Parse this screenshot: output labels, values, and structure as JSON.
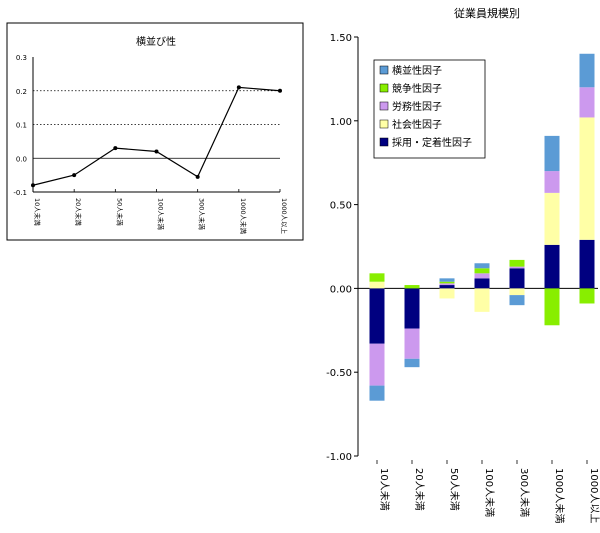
{
  "chart_data": [
    {
      "type": "line",
      "title": "横並び性",
      "categories": [
        "10人未満",
        "20人未満",
        "50人未満",
        "100人未満",
        "300人未満",
        "1000人未満",
        "1000人以上"
      ],
      "values": [
        -0.08,
        -0.05,
        0.03,
        0.02,
        -0.055,
        0.21,
        0.2
      ],
      "ylim": [
        -0.1,
        0.3
      ],
      "yticks": [
        "-0.1",
        "0.0",
        "0.1",
        "0.2",
        "0.3"
      ],
      "y_ticks_values": [
        -0.1,
        0.0,
        0.1,
        0.2,
        0.3
      ],
      "grid": "dotted at 0.1 and 0.2, solid line at 0.0",
      "colors": {
        "line": "#000000",
        "frame": "#000000"
      }
    },
    {
      "type": "bar",
      "stacked": true,
      "title": "従業員規模別",
      "categories": [
        "10人未満",
        "20人未満",
        "50人未満",
        "100人未満",
        "300人未満",
        "1000人未満",
        "1000人以上"
      ],
      "ylim": [
        -1.0,
        1.5
      ],
      "yticks": [
        "1.50",
        "1.00",
        "0.50",
        "0.00",
        "-0.50",
        "-1.00"
      ],
      "y_ticks_values": [
        1.5,
        1.0,
        0.5,
        0.0,
        -0.5,
        -1.0
      ],
      "legend_position": "top-left",
      "series": [
        {
          "name": "採用・定着性因子",
          "color": "#000080",
          "values": [
            -0.33,
            -0.24,
            0.02,
            0.06,
            0.12,
            0.26,
            0.29
          ]
        },
        {
          "name": "社会性因子",
          "color": "#ffffa6",
          "values": [
            0.04,
            0.0,
            -0.06,
            -0.14,
            -0.04,
            0.31,
            0.73
          ]
        },
        {
          "name": "労務性因子",
          "color": "#cc99ee",
          "values": [
            -0.25,
            -0.18,
            0.01,
            0.03,
            0.01,
            0.13,
            0.18
          ]
        },
        {
          "name": "競争性因子",
          "color": "#88ee00",
          "values": [
            0.05,
            0.02,
            0.01,
            0.03,
            0.04,
            -0.22,
            -0.09
          ]
        },
        {
          "name": "横並性因子",
          "color": "#5b9bd5",
          "values": [
            -0.09,
            -0.05,
            0.02,
            0.03,
            -0.06,
            0.21,
            0.2
          ]
        }
      ],
      "legend_order": [
        "横並性因子",
        "競争性因子",
        "労務性因子",
        "社会性因子",
        "採用・定着性因子"
      ]
    }
  ]
}
